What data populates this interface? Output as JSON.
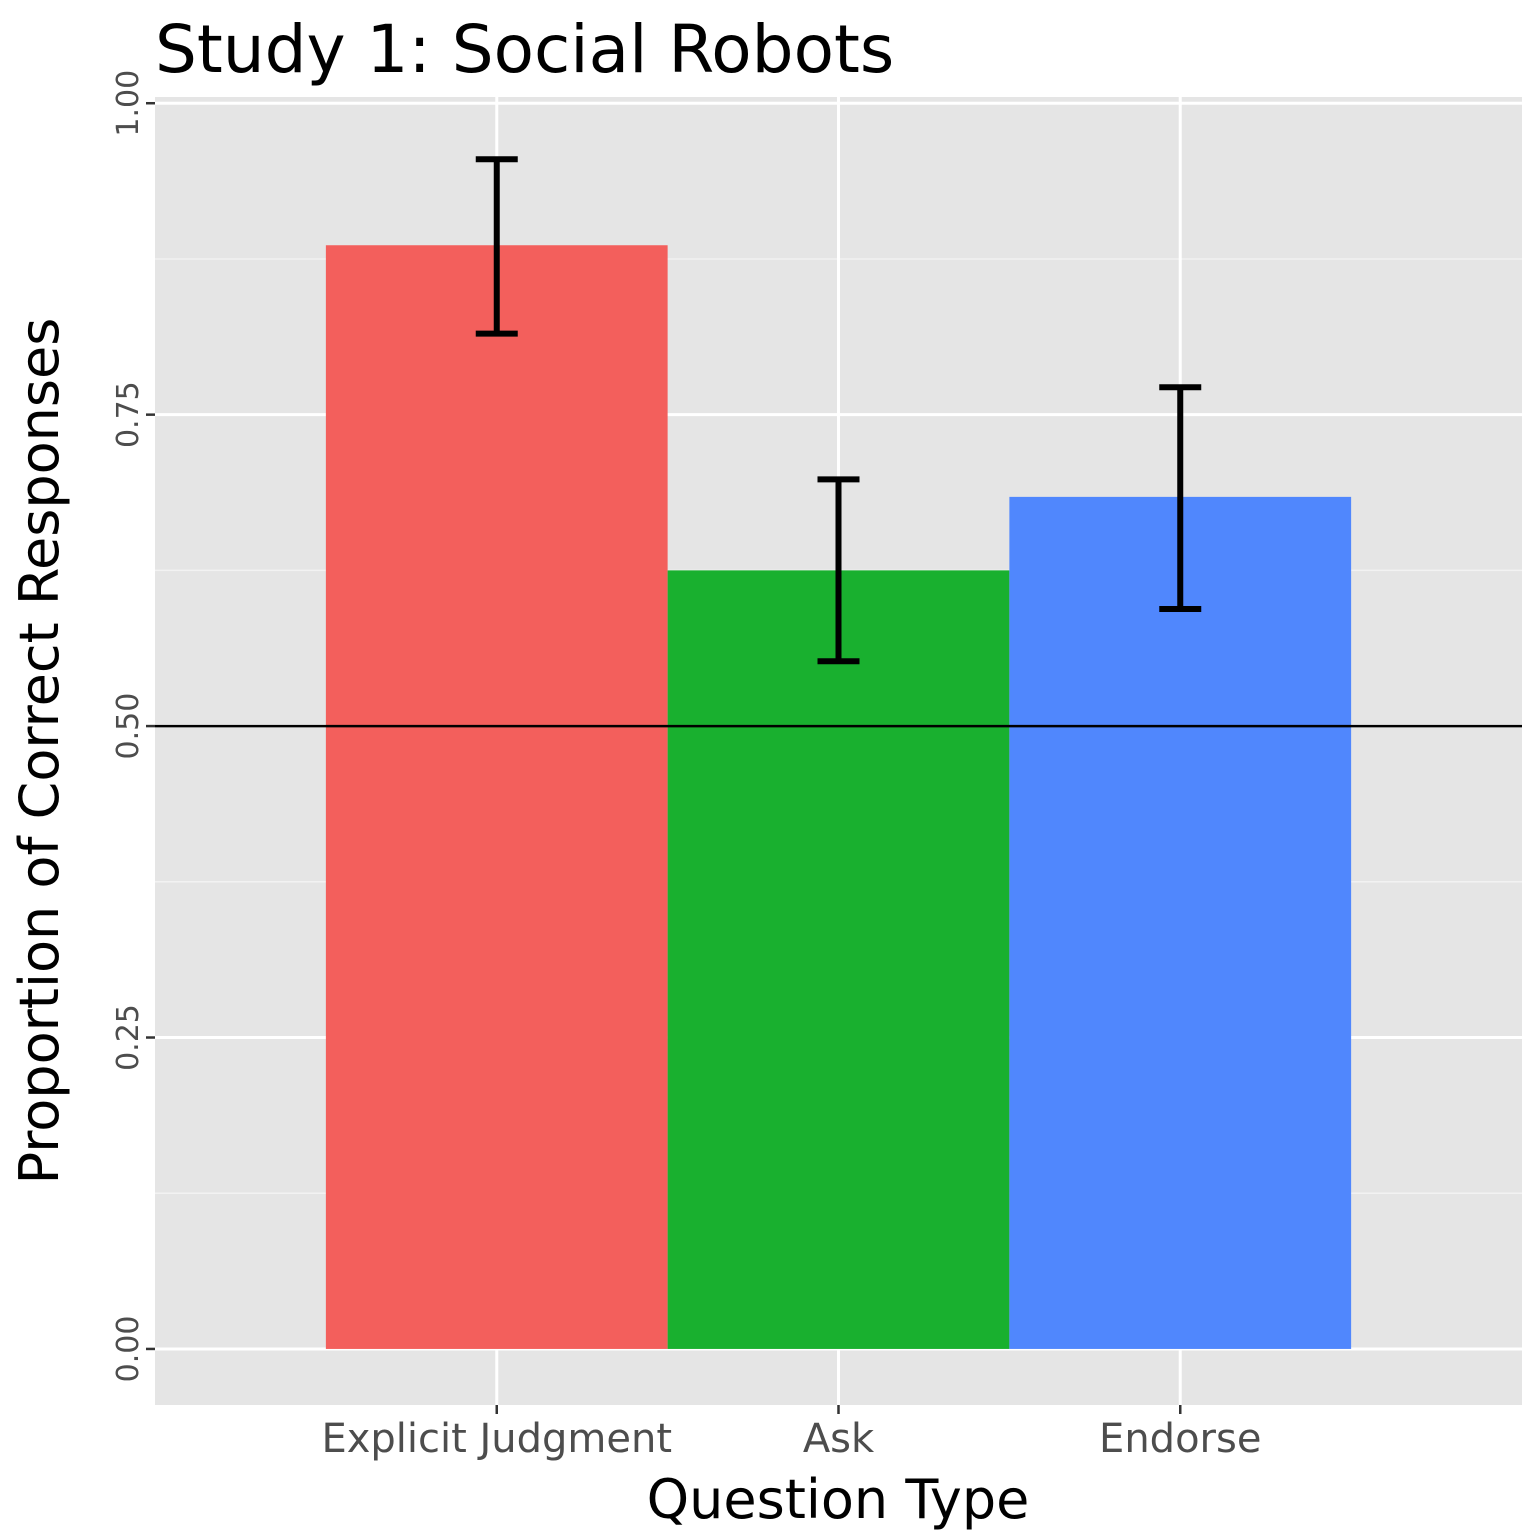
{
  "chart_data": {
    "type": "bar",
    "title": "Study 1: Social Robots",
    "xlabel": "Question Type",
    "ylabel": "Proportion of Correct Responses",
    "categories": [
      "Explicit Judgment",
      "Ask",
      "Endorse"
    ],
    "values": [
      0.886,
      0.625,
      0.684
    ],
    "error_low": [
      0.815,
      0.552,
      0.594
    ],
    "error_high": [
      0.955,
      0.698,
      0.772
    ],
    "colors": [
      "#f35f5c",
      "#19b02f",
      "#5087fd"
    ],
    "ylim": [
      -0.045,
      1.005
    ],
    "yticks": [
      "0.00",
      "0.25",
      "0.50",
      "0.75",
      "1.00"
    ],
    "ytick_values": [
      0,
      0.25,
      0.5,
      0.75,
      1.0
    ],
    "reference_line": 0.5,
    "grid": true,
    "legend": "none"
  }
}
